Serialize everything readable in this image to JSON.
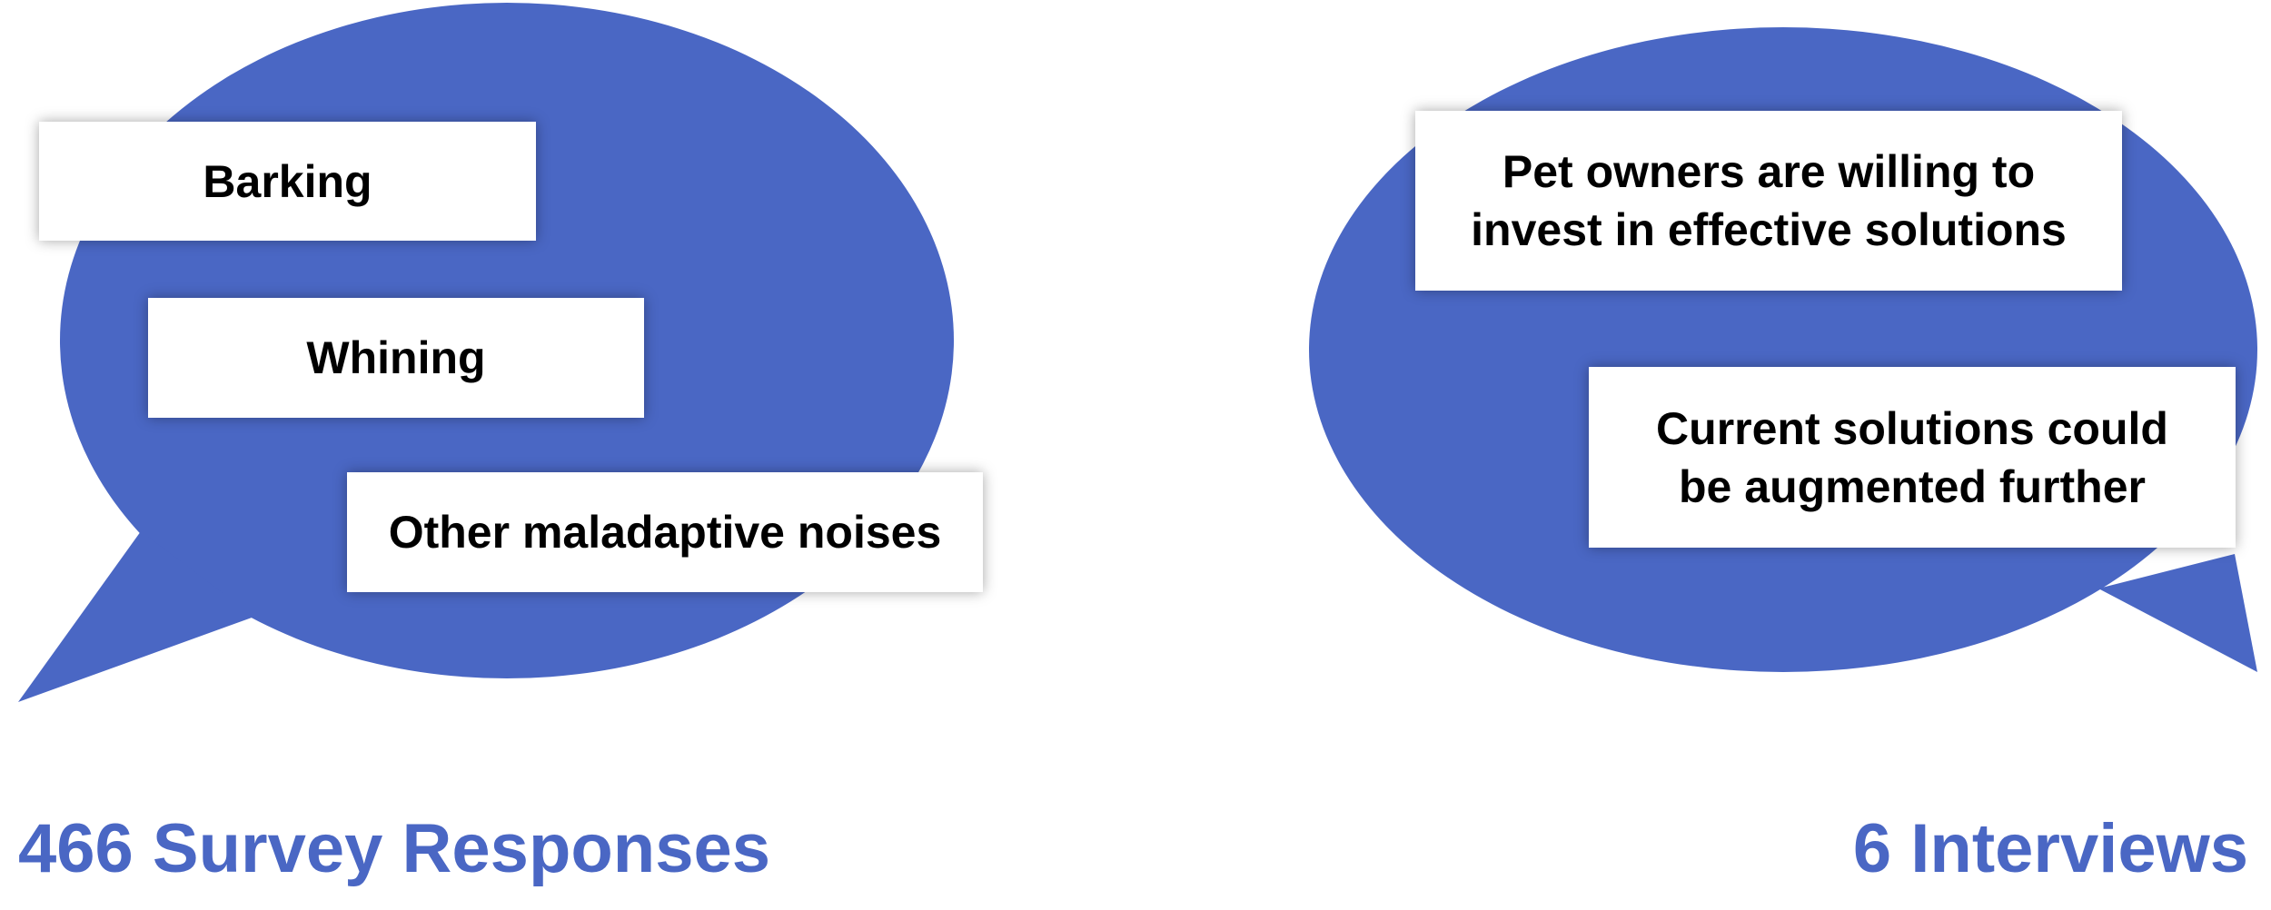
{
  "colors": {
    "bubble": "#4A67C4",
    "caption": "#4A67C4",
    "card": "#FFFFFF",
    "text": "#000000"
  },
  "survey": {
    "caption": "466 Survey Responses",
    "items": [
      {
        "text": "Barking"
      },
      {
        "text": "Whining"
      },
      {
        "text": "Other maladaptive noises"
      }
    ]
  },
  "interviews": {
    "caption": "6 Interviews",
    "items": [
      {
        "text": "Pet owners are willing to invest in effective solutions"
      },
      {
        "text": "Current solutions could be augmented further"
      }
    ]
  }
}
